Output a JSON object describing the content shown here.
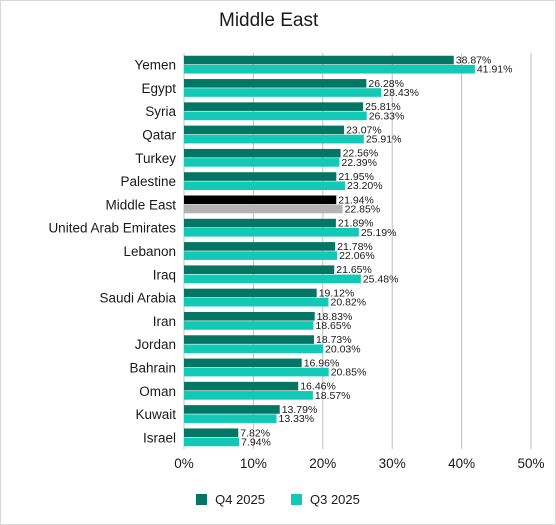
{
  "colors": {
    "q4": "#057663",
    "q3": "#12c9b6",
    "highlight_q4": "#000000",
    "highlight_q3": "#b3b3b3",
    "grid": "#bfbfbf"
  },
  "chart_data": {
    "type": "bar",
    "orientation": "horizontal",
    "title": "Middle East",
    "categories": [
      "Yemen",
      "Egypt",
      "Syria",
      "Qatar",
      "Turkey",
      "Palestine",
      "Middle East",
      "United Arab Emirates",
      "Lebanon",
      "Iraq",
      "Saudi Arabia",
      "Iran",
      "Jordan",
      "Bahrain",
      "Oman",
      "Kuwait",
      "Israel"
    ],
    "highlight_category": "Middle East",
    "series": [
      {
        "name": "Q4 2025",
        "values": [
          38.87,
          26.28,
          25.81,
          23.07,
          22.56,
          21.95,
          21.94,
          21.89,
          21.78,
          21.65,
          19.12,
          18.83,
          18.73,
          16.96,
          16.46,
          13.79,
          7.82
        ],
        "labels": [
          "38.87%",
          "26.28%",
          "25.81%",
          "23.07%",
          "22.56%",
          "21.95%",
          "21.94%",
          "21.89%",
          "21.78%",
          "21.65%",
          "19.12%",
          "18.83%",
          "18.73%",
          "16.96%",
          "16.46%",
          "13.79%",
          "7.82%"
        ]
      },
      {
        "name": "Q3 2025",
        "values": [
          41.91,
          28.43,
          26.33,
          25.91,
          22.39,
          23.2,
          22.85,
          25.19,
          22.06,
          25.48,
          20.82,
          18.65,
          20.03,
          20.85,
          18.57,
          13.33,
          7.94
        ],
        "labels": [
          "41.91%",
          "28.43%",
          "26.33%",
          "25.91%",
          "22.39%",
          "23.20%",
          "22.85%",
          "25.19%",
          "22.06%",
          "25.48%",
          "20.82%",
          "18.65%",
          "20.03%",
          "20.85%",
          "18.57%",
          "13.33%",
          "7.94%"
        ]
      }
    ],
    "xlim": [
      0,
      50
    ],
    "xticks": [
      0,
      10,
      20,
      30,
      40,
      50
    ],
    "xtick_labels": [
      "0%",
      "10%",
      "20%",
      "30%",
      "40%",
      "50%"
    ],
    "grid": "vertical",
    "legend_position": "bottom"
  }
}
